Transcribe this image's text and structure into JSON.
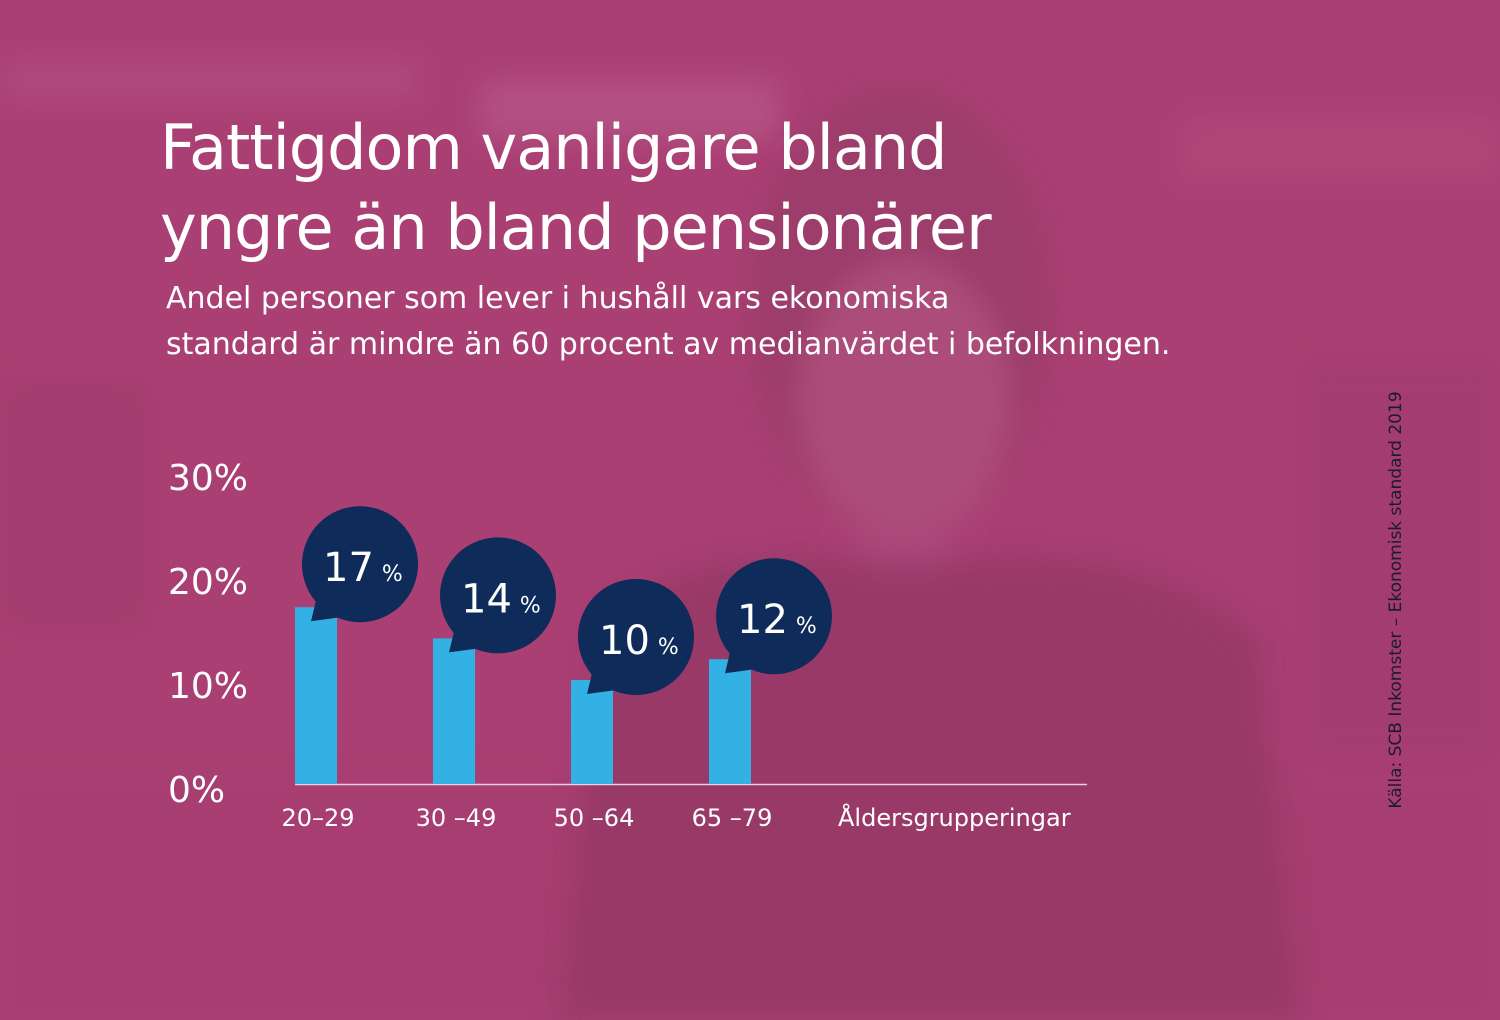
{
  "title_lines": [
    "Fattigdom vanligare bland",
    "yngre än bland pensionärer"
  ],
  "subtitle_lines": [
    "Andel personer som lever i hushåll vars ekonomiska",
    "standard är mindre än 60 procent av medianvärdet i befolkningen."
  ],
  "source": "Källa: SCB Inkomster – Ekonomisk standard 2019",
  "colors": {
    "background": "#a83f72",
    "bar": "#33b0e4",
    "bubble": "#0e2b5a",
    "text": "#ffffff",
    "source_text": "#1b1b2f"
  },
  "chart_data": {
    "type": "bar",
    "categories": [
      "20–29",
      "30 –49",
      "50 –64",
      "65 –79"
    ],
    "values": [
      17,
      14,
      10,
      12
    ],
    "data_labels": [
      {
        "number": "17",
        "unit": "%"
      },
      {
        "number": "14",
        "unit": "%"
      },
      {
        "number": "10",
        "unit": "%"
      },
      {
        "number": "12",
        "unit": "%"
      }
    ],
    "xlabel": "Åldersgrupperingar",
    "ylabel": "",
    "ylim": [
      0,
      30
    ],
    "yticks": [
      0,
      10,
      20,
      30
    ],
    "ytick_labels": [
      "0%",
      "10%",
      "20%",
      "30%"
    ],
    "grid": false,
    "legend": "none"
  }
}
